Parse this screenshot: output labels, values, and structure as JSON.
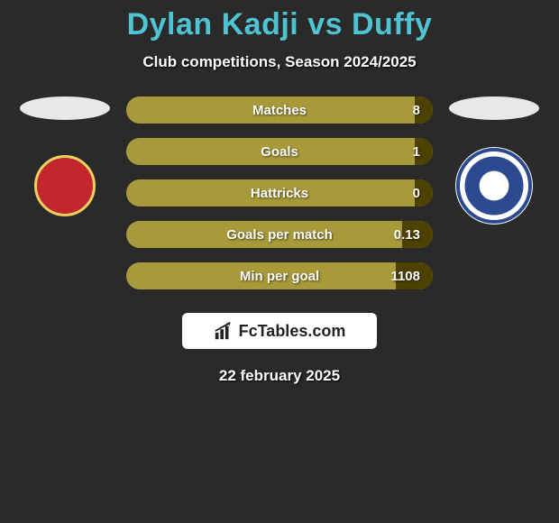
{
  "title": {
    "player1": "Dylan Kadji",
    "vs": "vs",
    "player2": "Duffy"
  },
  "subtitle": "Club competitions, Season 2024/2025",
  "colors": {
    "title": "#4fc3d1",
    "bar_light": "#a89a3a",
    "bar_dark": "#4d4100",
    "background": "#2a2a2a"
  },
  "stats": [
    {
      "label": "Matches",
      "right_value": "8",
      "right_fill_pct": 6
    },
    {
      "label": "Goals",
      "right_value": "1",
      "right_fill_pct": 6
    },
    {
      "label": "Hattricks",
      "right_value": "0",
      "right_fill_pct": 6
    },
    {
      "label": "Goals per match",
      "right_value": "0.13",
      "right_fill_pct": 10
    },
    {
      "label": "Min per goal",
      "right_value": "1108",
      "right_fill_pct": 12
    }
  ],
  "footer_brand": "FcTables.com",
  "date": "22 february 2025"
}
